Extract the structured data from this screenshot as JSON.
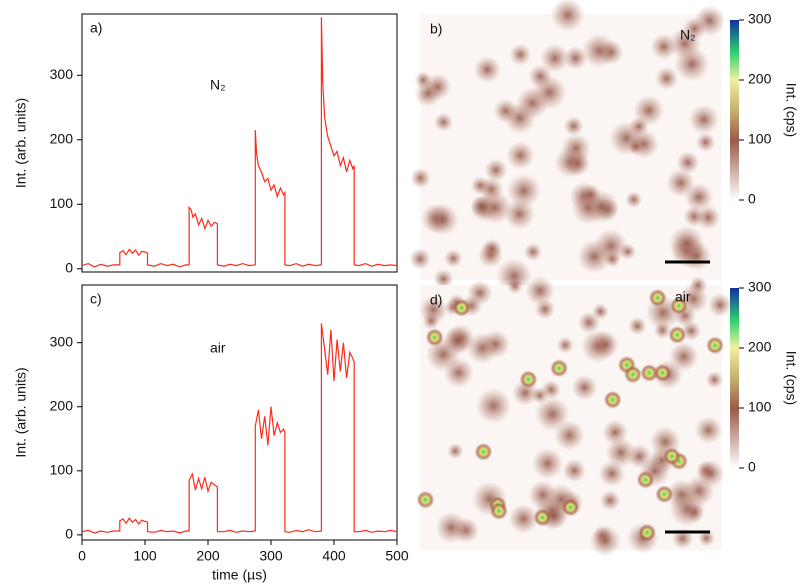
{
  "chart_data": [
    {
      "type": "line",
      "label": "a)",
      "annotation": "N₂",
      "ylabel": "Int. (arb. units)",
      "xlim": [
        0,
        500
      ],
      "ylim": [
        -5,
        395
      ],
      "yticks": [
        0,
        100,
        200,
        300
      ],
      "series": [
        {
          "color": "#ff2a1a",
          "x": [
            0,
            10,
            20,
            30,
            40,
            50,
            60,
            60,
            65,
            70,
            75,
            80,
            85,
            90,
            95,
            100,
            104,
            104,
            115,
            125,
            135,
            145,
            155,
            165,
            170,
            170,
            173,
            176,
            180,
            185,
            190,
            195,
            200,
            205,
            210,
            215,
            215,
            225,
            235,
            245,
            255,
            265,
            275,
            275,
            277,
            280,
            285,
            290,
            295,
            300,
            305,
            310,
            315,
            320,
            322,
            322,
            330,
            340,
            350,
            360,
            370,
            380,
            380,
            382,
            385,
            390,
            395,
            400,
            405,
            410,
            415,
            420,
            425,
            430,
            432,
            432,
            440,
            450,
            460,
            470,
            480,
            490,
            500
          ],
          "values": [
            5,
            8,
            3,
            7,
            4,
            6,
            6,
            25,
            28,
            22,
            30,
            24,
            29,
            21,
            27,
            26,
            24,
            6,
            4,
            8,
            5,
            7,
            3,
            6,
            6,
            95,
            92,
            80,
            85,
            68,
            78,
            62,
            75,
            66,
            72,
            70,
            6,
            4,
            7,
            5,
            8,
            5,
            6,
            215,
            180,
            160,
            150,
            135,
            140,
            122,
            130,
            112,
            125,
            115,
            118,
            6,
            5,
            8,
            4,
            7,
            5,
            6,
            390,
            290,
            235,
            205,
            190,
            175,
            182,
            160,
            172,
            150,
            168,
            155,
            160,
            6,
            5,
            8,
            4,
            7,
            5,
            6,
            5
          ]
        }
      ]
    },
    {
      "type": "line",
      "label": "c)",
      "annotation": "air",
      "ylabel": "Int. (arb. units)",
      "xlabel": "time (µs)",
      "xlim": [
        0,
        500
      ],
      "xticks": [
        0,
        100,
        200,
        300,
        400,
        500
      ],
      "ylim": [
        -8,
        390
      ],
      "yticks": [
        0,
        100,
        200,
        300
      ],
      "series": [
        {
          "color": "#ff2a1a",
          "x": [
            0,
            10,
            20,
            30,
            40,
            50,
            60,
            60,
            65,
            70,
            75,
            80,
            85,
            90,
            95,
            100,
            104,
            104,
            115,
            125,
            135,
            145,
            155,
            165,
            170,
            170,
            175,
            180,
            185,
            190,
            195,
            200,
            205,
            210,
            215,
            215,
            225,
            235,
            245,
            255,
            265,
            275,
            275,
            280,
            285,
            290,
            295,
            300,
            305,
            310,
            315,
            320,
            322,
            322,
            330,
            340,
            350,
            360,
            370,
            380,
            380,
            385,
            390,
            395,
            400,
            405,
            410,
            415,
            420,
            425,
            430,
            432,
            432,
            440,
            450,
            460,
            470,
            480,
            490,
            500
          ],
          "values": [
            5,
            7,
            3,
            6,
            4,
            6,
            6,
            22,
            25,
            18,
            26,
            20,
            24,
            17,
            23,
            21,
            20,
            5,
            4,
            7,
            5,
            6,
            3,
            6,
            6,
            85,
            95,
            70,
            88,
            72,
            90,
            68,
            82,
            78,
            75,
            5,
            5,
            7,
            4,
            6,
            5,
            6,
            170,
            195,
            150,
            185,
            140,
            200,
            155,
            175,
            160,
            165,
            160,
            5,
            4,
            7,
            5,
            8,
            5,
            6,
            330,
            290,
            250,
            320,
            240,
            305,
            255,
            300,
            245,
            285,
            275,
            270,
            5,
            5,
            7,
            4,
            6,
            5,
            7,
            5
          ]
        }
      ]
    },
    {
      "type": "image",
      "label": "b)",
      "annotation": "N₂",
      "colorbar": {
        "label": "Int. (cps)",
        "lim": [
          0,
          300
        ],
        "ticks": [
          0,
          100,
          200,
          300
        ]
      }
    },
    {
      "type": "image",
      "label": "d)",
      "annotation": "air",
      "colorbar": {
        "label": "Int. (cps)",
        "lim": [
          0,
          300
        ],
        "ticks": [
          0,
          100,
          200,
          300
        ]
      }
    }
  ]
}
